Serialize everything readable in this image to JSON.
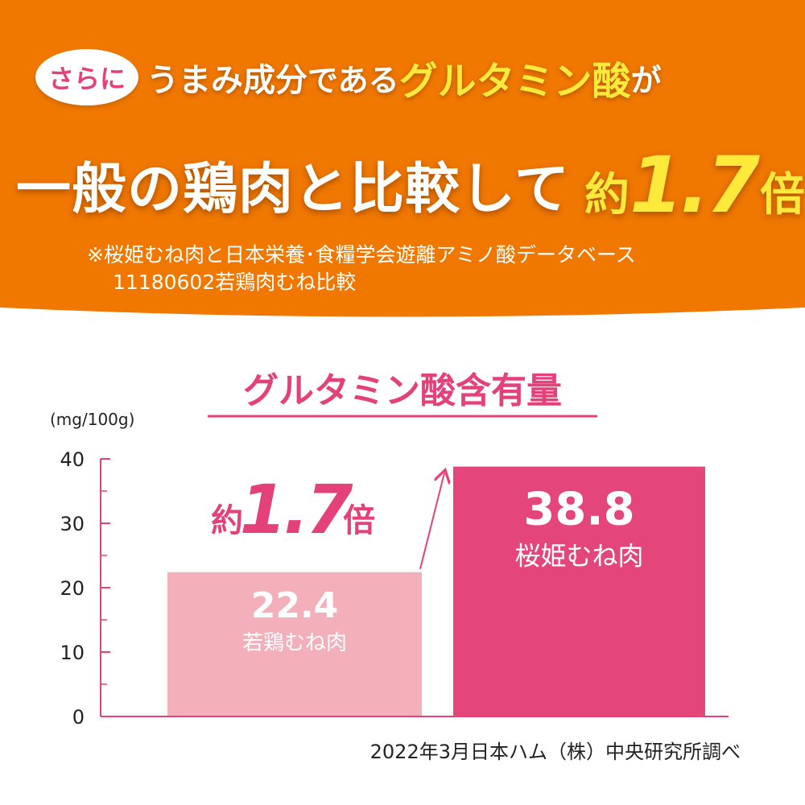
{
  "colors": {
    "banner": "#f07800",
    "accent": "#e4417a",
    "bar_light": "#f3b0bb",
    "bar_dark": "#e4467b",
    "headline_yellow": "#ffe93b"
  },
  "headline": {
    "badge": "さらに",
    "line1_a": "うまみ成分",
    "line1_b": "である",
    "line1_highlight": "グルタミン酸",
    "line1_c": "が",
    "line2_main": "一般の鶏肉と比較して",
    "line2_prefix": "約",
    "line2_number": "1.7",
    "line2_suffix": "倍",
    "note_mark": "※"
  },
  "footnote": {
    "line1": "※桜姫むね肉と日本栄養･食糧学会遊離アミノ酸データベース",
    "line2": "11180602若鶏肉むね比較"
  },
  "chart_data": {
    "type": "bar",
    "title": "グルタミン酸含有量",
    "ylabel": "(mg/100g)",
    "xlabel": "",
    "ylim": [
      0,
      40
    ],
    "yticks": [
      0,
      10,
      20,
      30,
      40
    ],
    "categories": [
      "若鶏むね肉",
      "桜姫むね肉"
    ],
    "values": [
      22.4,
      38.8
    ],
    "value_labels": [
      "22.4",
      "38.8"
    ],
    "ratio_annotation": {
      "prefix": "約",
      "number": "1.7",
      "suffix": "倍"
    },
    "source": "2022年3月日本ハム（株）中央研究所調べ"
  }
}
